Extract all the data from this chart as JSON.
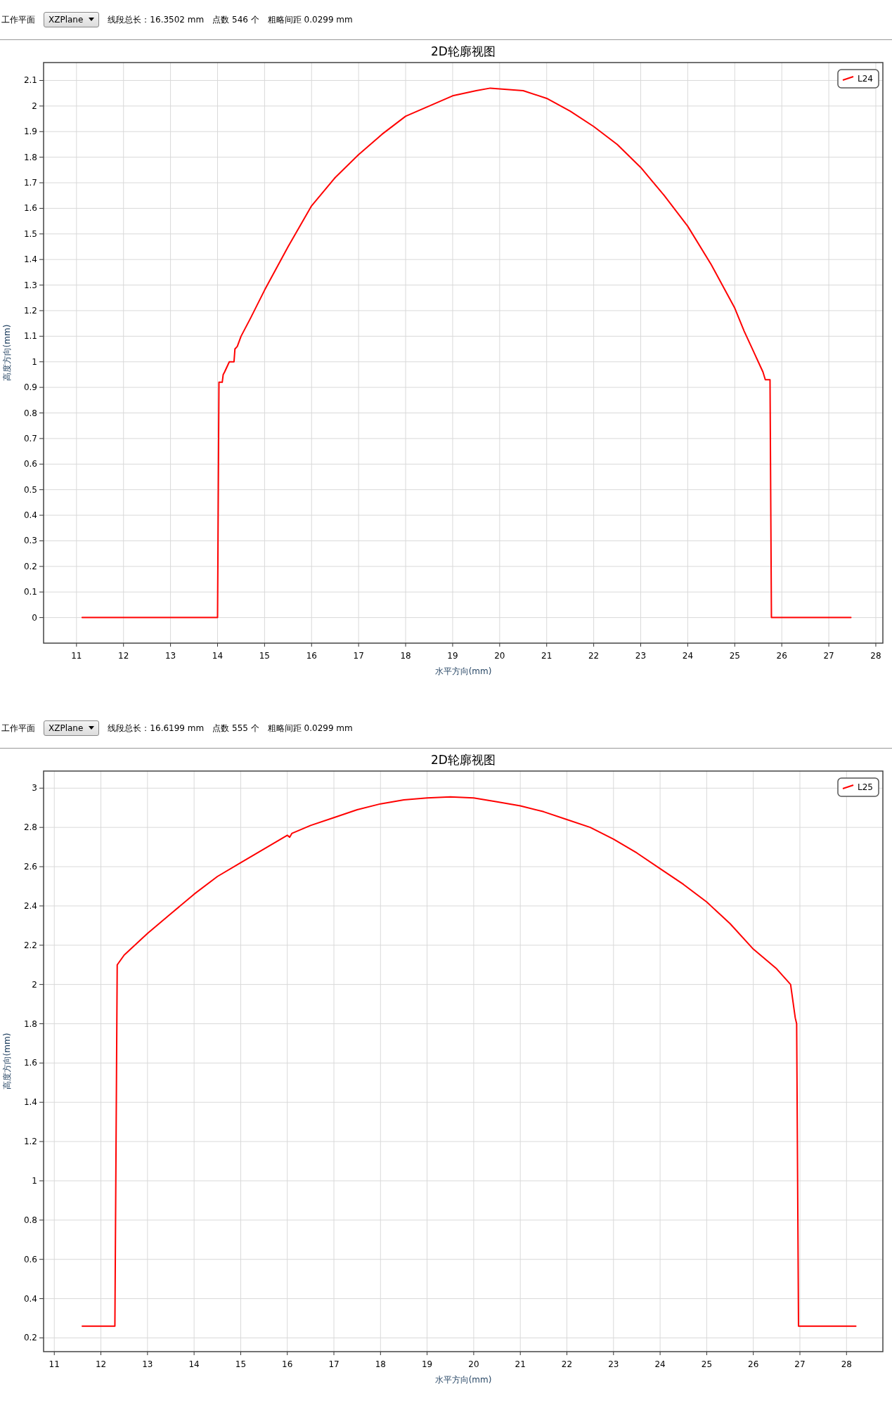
{
  "chart_data": [
    {
      "type": "line",
      "title": "2D轮廓视图",
      "xlabel": "水平方向(mm)",
      "ylabel": "高度方向(mm)",
      "annotations": [
        "工作平面",
        "XZPlane",
        "线段总长：16.3502 mm",
        "点数  546  个",
        "粗略间距  0.0299  mm"
      ],
      "xlim": [
        10.3,
        28.15
      ],
      "ylim": [
        -0.1,
        2.17
      ],
      "xticks": [
        11,
        12,
        13,
        14,
        15,
        16,
        17,
        18,
        19,
        20,
        21,
        22,
        23,
        24,
        25,
        26,
        27,
        28
      ],
      "yticks": [
        0,
        0.1,
        0.2,
        0.3,
        0.4,
        0.5,
        0.6,
        0.7,
        0.8,
        0.9,
        1,
        1.1,
        1.2,
        1.3,
        1.4,
        1.5,
        1.6,
        1.7,
        1.8,
        1.9,
        2,
        2.1
      ],
      "grid": true,
      "legend": "top right",
      "series": [
        {
          "name": "L24",
          "color": "#ff0000",
          "x": [
            11.12,
            14.0,
            14.03,
            14.1,
            14.12,
            14.15,
            14.2,
            14.25,
            14.35,
            14.37,
            14.42,
            14.5,
            14.7,
            15,
            15.5,
            16,
            16.5,
            17,
            17.5,
            18,
            18.5,
            19,
            19.5,
            19.8,
            20.5,
            21,
            21.5,
            22,
            22.5,
            23,
            23.5,
            24,
            24.5,
            25,
            25.2,
            25.4,
            25.5,
            25.6,
            25.65,
            25.75,
            25.78,
            27.47
          ],
          "values": [
            0,
            0,
            0.92,
            0.92,
            0.95,
            0.96,
            0.98,
            1.0,
            1.0,
            1.05,
            1.06,
            1.1,
            1.17,
            1.28,
            1.45,
            1.61,
            1.72,
            1.81,
            1.89,
            1.96,
            2.0,
            2.04,
            2.06,
            2.07,
            2.06,
            2.03,
            1.98,
            1.92,
            1.85,
            1.76,
            1.65,
            1.53,
            1.38,
            1.21,
            1.12,
            1.04,
            1.0,
            0.96,
            0.93,
            0.93,
            0,
            0
          ]
        }
      ]
    },
    {
      "type": "line",
      "title": "2D轮廓视图",
      "xlabel": "水平方向(mm)",
      "ylabel": "高度方向(mm)",
      "annotations": [
        "工作平面",
        "XZPlane",
        "线段总长：16.6199 mm",
        "点数  555  个",
        "粗略间距  0.0299  mm"
      ],
      "xlim": [
        10.77,
        28.78
      ],
      "ylim": [
        0.13,
        3.087
      ],
      "xticks": [
        11,
        12,
        13,
        14,
        15,
        16,
        17,
        18,
        19,
        20,
        21,
        22,
        23,
        24,
        25,
        26,
        27,
        28
      ],
      "yticks": [
        0.2,
        0.4,
        0.6,
        0.8,
        1,
        1.2,
        1.4,
        1.6,
        1.8,
        2,
        2.2,
        2.4,
        2.6,
        2.8,
        3
      ],
      "grid": true,
      "legend": "top right",
      "series": [
        {
          "name": "L25",
          "color": "#ff0000",
          "x": [
            11.6,
            12.0,
            12.3,
            12.35,
            12.5,
            13,
            13.5,
            14,
            14.5,
            15,
            15.5,
            16,
            16.05,
            16.1,
            16.5,
            17,
            17.5,
            18,
            18.5,
            19,
            19.5,
            20,
            20.5,
            21,
            21.5,
            22,
            22.5,
            23,
            23.5,
            24,
            24.5,
            25,
            25.5,
            26,
            26.5,
            26.8,
            26.9,
            26.93,
            26.97,
            27.5,
            28.2
          ],
          "values": [
            0.26,
            0.26,
            0.26,
            2.1,
            2.15,
            2.26,
            2.36,
            2.46,
            2.55,
            2.62,
            2.69,
            2.76,
            2.75,
            2.77,
            2.81,
            2.85,
            2.89,
            2.92,
            2.94,
            2.95,
            2.955,
            2.95,
            2.93,
            2.91,
            2.88,
            2.84,
            2.8,
            2.74,
            2.67,
            2.59,
            2.51,
            2.42,
            2.31,
            2.18,
            2.08,
            2.0,
            1.83,
            1.8,
            0.26,
            0.26,
            0.26
          ]
        }
      ]
    }
  ]
}
